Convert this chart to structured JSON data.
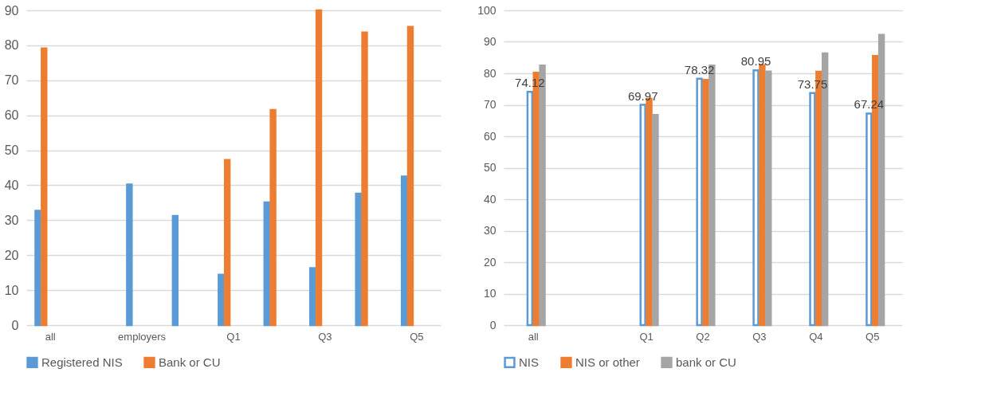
{
  "chart_data": [
    {
      "type": "bar",
      "categories": [
        "all",
        null,
        "employers",
        null,
        "Q1",
        null,
        "Q3",
        null,
        "Q5"
      ],
      "series": [
        {
          "name": "Registered NIS",
          "color": "#5b9bd5",
          "values": [
            32.7,
            null,
            40.2,
            31.2,
            14.4,
            35.1,
            16.3,
            37.6,
            42.5
          ]
        },
        {
          "name": "Bank or CU",
          "color": "#ed7d31",
          "values": [
            79.1,
            null,
            null,
            null,
            47.2,
            61.5,
            90.0,
            83.7,
            85.3
          ]
        }
      ],
      "ylim": [
        0,
        90
      ],
      "yticks": [
        0,
        10,
        20,
        30,
        40,
        50,
        60,
        70,
        80,
        90
      ],
      "grid": "y",
      "legend": "bottom"
    },
    {
      "type": "bar",
      "categories": [
        "all",
        null,
        "Q1",
        "Q2",
        "Q3",
        "Q4",
        "Q5"
      ],
      "series": [
        {
          "name": "NIS",
          "color": "#5b9bd5",
          "values": [
            74.12,
            null,
            69.97,
            78.32,
            80.95,
            73.75,
            67.24
          ],
          "value_labels": [
            "74.12",
            null,
            "69.97",
            "78.32",
            "80.95",
            "73.75",
            "67.24"
          ]
        },
        {
          "name": "NIS or other",
          "color": "#ed7d31",
          "values": [
            80.2,
            null,
            71.9,
            77.9,
            82.6,
            80.5,
            85.5
          ]
        },
        {
          "name": "bank or CU",
          "color": "#a5a5a5",
          "values": [
            82.5,
            null,
            66.8,
            82.5,
            80.6,
            86.3,
            92.2
          ]
        }
      ],
      "ylim": [
        0,
        100
      ],
      "yticks": [
        0,
        10,
        20,
        30,
        40,
        50,
        60,
        70,
        80,
        90,
        100
      ],
      "grid": "y",
      "legend": "bottom"
    }
  ]
}
